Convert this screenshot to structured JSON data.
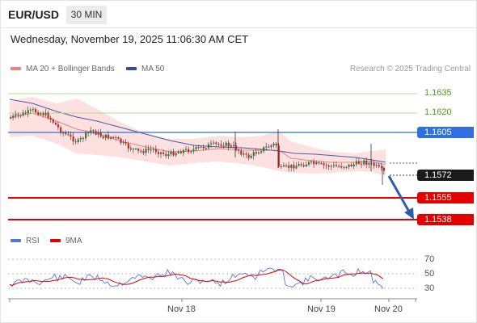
{
  "header": {
    "symbol": "EUR/USD",
    "timeframe": "30 MIN",
    "datetime": "Wednesday, November 19, 2025 11:06:30 AM CET"
  },
  "legend": {
    "ma20_label": "MA 20 + Bollinger Bands",
    "ma50_label": "MA 50",
    "credit": "Research © 2025 Trading Central"
  },
  "levels": {
    "r2": "1.1635",
    "r1": "1.1620",
    "pivot": "1.1605",
    "current": "1.1572",
    "s1": "1.1555",
    "s2": "1.1538"
  },
  "rsi_panel": {
    "rsi_label": "RSI",
    "ma_label": "9MA",
    "ticks": [
      "70",
      "50",
      "30"
    ]
  },
  "xaxis": {
    "labels": [
      "Nov 18",
      "Nov 19",
      "Nov 20"
    ]
  },
  "colors": {
    "resistance": "#8cc63f",
    "pivot": "#2f6fe0",
    "support": "#e30000",
    "current": "#1a1a1a",
    "bollinger": "#fbd9d8",
    "ma20": "#f08080",
    "ma50": "#4a5aa6",
    "candle_up": "#2e7d32",
    "candle_down": "#c62828",
    "arrow": "#2d5fa8",
    "rsi_line": "#5577dd",
    "rsi_ma": "#e30000"
  }
}
